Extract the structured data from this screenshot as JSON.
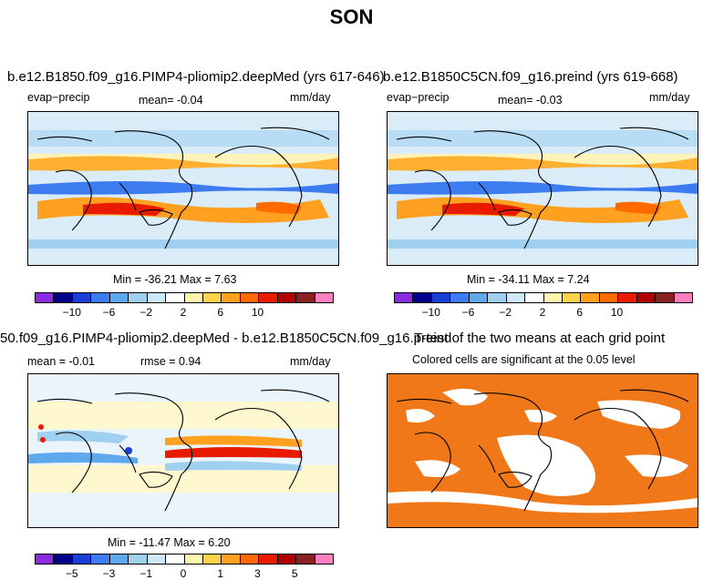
{
  "title": "SON",
  "panels": {
    "top_left": {
      "title": "b.e12.B1850.f09_g16.PIMP4-pliomip2.deepMed (yrs 617-646)",
      "variable": "evap−precip",
      "mean": "mean=   -0.04",
      "units": "mm/day",
      "minmax": "Min = -36.21  Max =    7.63",
      "colorbar_ticks": [
        "−10",
        "−6",
        "−2",
        "2",
        "6",
        "10"
      ]
    },
    "top_right": {
      "title": "b.e12.B1850C5CN.f09_g16.preind (yrs 619-668)",
      "variable": "evap−precip",
      "mean": "mean=   -0.03",
      "units": "mm/day",
      "minmax": "Min = -34.11  Max =    7.24",
      "colorbar_ticks": [
        "−10",
        "−6",
        "−2",
        "2",
        "6",
        "10"
      ]
    },
    "bottom_left": {
      "title": "50.f09_g16.PIMP4-pliomip2.deepMed - b.e12.B1850C5CN.f09_g16.preind",
      "mean": "mean =  -0.01",
      "rmse": "rmse =    0.94",
      "units": "mm/day",
      "minmax": "Min = -11.47  Max =    6.20",
      "colorbar_ticks": [
        "−5",
        "−3",
        "−1",
        "0",
        "1",
        "3",
        "5"
      ]
    },
    "bottom_right": {
      "title": "T-test of the two means at each grid point",
      "subtitle": "Colored cells are significant at the 0.05 level"
    }
  },
  "colors": {
    "abs_colorbar": [
      "#8a2be2",
      "#00008b",
      "#1a3fd6",
      "#3c7cf0",
      "#5fa8ee",
      "#9fd0f0",
      "#cfe8f8",
      "#ffffff",
      "#fff4b0",
      "#ffd24a",
      "#ffa020",
      "#ff6a00",
      "#e81a00",
      "#b00000",
      "#8b2020",
      "#ff80c0"
    ],
    "diff_colorbar": [
      "#8a2be2",
      "#00008b",
      "#1a3fd6",
      "#3c7cf0",
      "#5fa8ee",
      "#9fd0f0",
      "#cfe8f8",
      "#ffffff",
      "#fff4b0",
      "#ffd24a",
      "#ffa020",
      "#ff6a00",
      "#e81a00",
      "#b00000",
      "#8b2020",
      "#ff80c0"
    ],
    "significance": "#f07818"
  }
}
